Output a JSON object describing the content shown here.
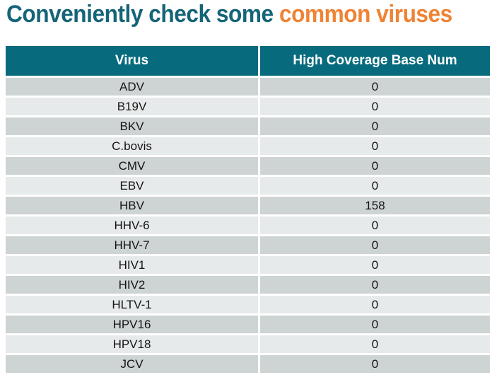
{
  "title": {
    "prefix": "Conveniently check some ",
    "highlight": "common viruses"
  },
  "colors": {
    "title_teal": "#156478",
    "title_orange": "#EF8335",
    "header_bg": "#086B7D",
    "header_text": "#FFFFFF",
    "row_dark": "#CED3D4",
    "row_light": "#E7EAEA",
    "cell_text": "#141414"
  },
  "chart_data": {
    "type": "table",
    "title": "Conveniently check some common viruses",
    "columns": [
      "Virus",
      "High Coverage Base Num"
    ],
    "rows": [
      [
        "ADV",
        "0"
      ],
      [
        "B19V",
        "0"
      ],
      [
        "BKV",
        "0"
      ],
      [
        "C.bovis",
        "0"
      ],
      [
        "CMV",
        "0"
      ],
      [
        "EBV",
        "0"
      ],
      [
        "HBV",
        "158"
      ],
      [
        "HHV-6",
        "0"
      ],
      [
        "HHV-7",
        "0"
      ],
      [
        "HIV1",
        "0"
      ],
      [
        "HIV2",
        "0"
      ],
      [
        "HLTV-1",
        "0"
      ],
      [
        "HPV16",
        "0"
      ],
      [
        "HPV18",
        "0"
      ],
      [
        "JCV",
        "0"
      ]
    ]
  }
}
